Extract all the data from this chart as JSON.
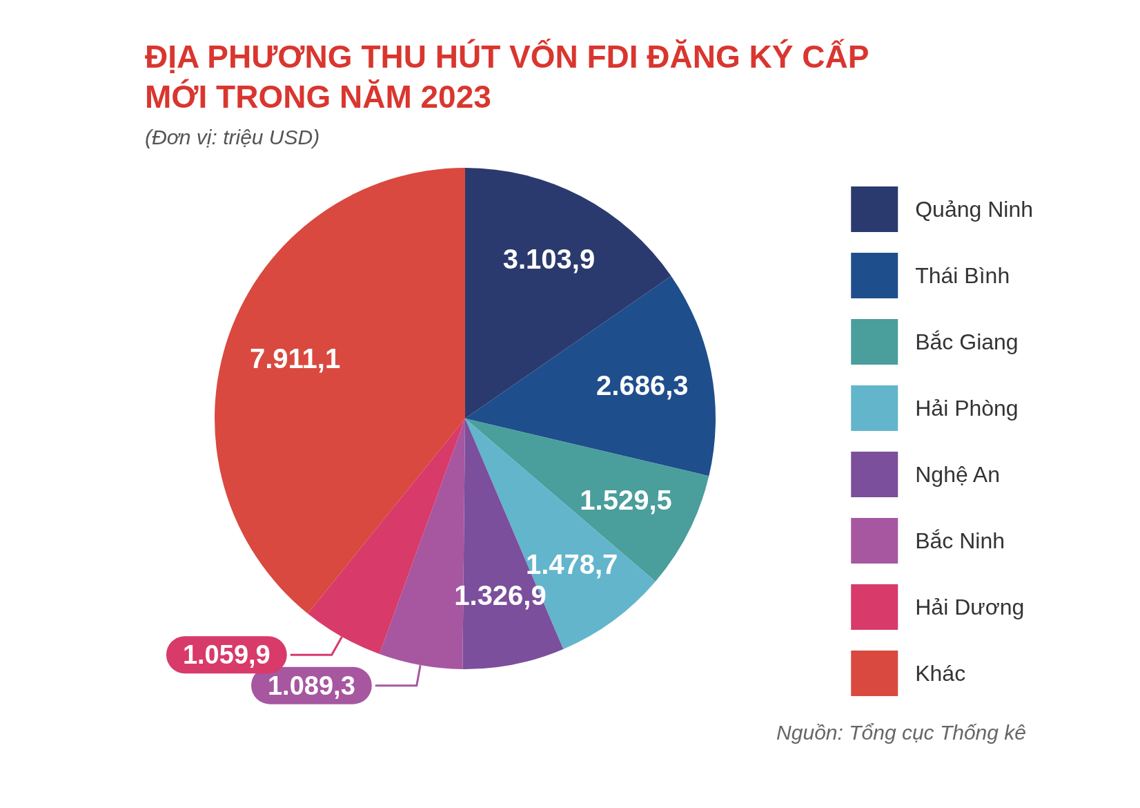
{
  "chart_data": {
    "type": "pie",
    "title": "ĐỊA PHƯƠNG THU HÚT VỐN FDI ĐĂNG KÝ CẤP MỚI TRONG NĂM 2023",
    "subtitle": "(Đơn vị: triệu USD)",
    "categories": [
      "Quảng Ninh",
      "Thái Bình",
      "Bắc Giang",
      "Hải Phòng",
      "Nghệ An",
      "Bắc Ninh",
      "Hải Dương",
      "Khác"
    ],
    "values": [
      3103.9,
      2686.3,
      1529.5,
      1478.7,
      1326.9,
      1089.3,
      1059.9,
      7911.1
    ],
    "value_labels": [
      "3.103,9",
      "2.686,3",
      "1.529,5",
      "1.478,7",
      "1.326,9",
      "1.089,3",
      "1.059,9",
      "7.911,1"
    ],
    "colors": [
      "#2b3a6e",
      "#1f4e8c",
      "#4a9e9c",
      "#63b5cc",
      "#7b4f9c",
      "#a657a0",
      "#d83a6a",
      "#d9493f"
    ],
    "legend": "right",
    "annotations": [
      "Nguồn: Tổng cục Thống kê"
    ]
  }
}
